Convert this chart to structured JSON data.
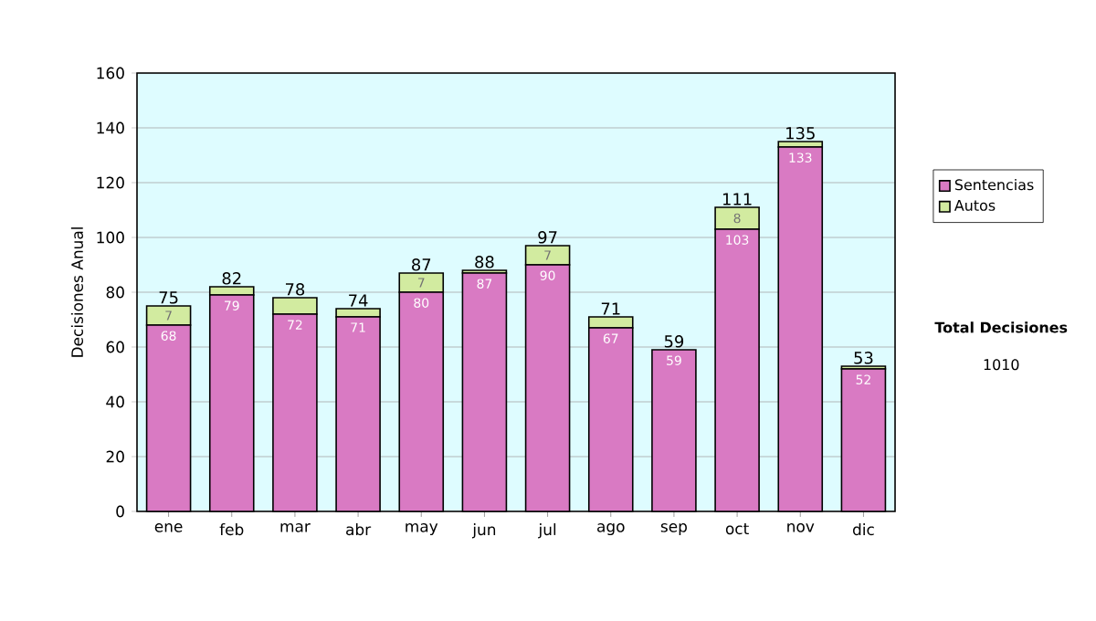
{
  "chart_data": {
    "type": "bar",
    "stacked": true,
    "ylabel": "Decisiones Anual",
    "categories": [
      "ene",
      "feb",
      "mar",
      "abr",
      "may",
      "jun",
      "jul",
      "ago",
      "sep",
      "oct",
      "nov",
      "dic"
    ],
    "series": [
      {
        "name": "Sentencias",
        "color": "#d97ac3",
        "values": [
          68,
          79,
          72,
          71,
          80,
          87,
          90,
          67,
          59,
          103,
          133,
          52
        ],
        "value_labels": [
          "68",
          "79",
          "72",
          "71",
          "80",
          "87",
          "90",
          "67",
          "59",
          "103",
          "133",
          "52"
        ]
      },
      {
        "name": "Autos",
        "color": "#d2eba0",
        "values": [
          7,
          3,
          6,
          3,
          7,
          1,
          7,
          4,
          0,
          8,
          2,
          1
        ],
        "value_labels": [
          "7",
          null,
          null,
          null,
          "7",
          null,
          "7",
          null,
          null,
          "8",
          null,
          null
        ]
      }
    ],
    "totals": [
      "75",
      "82",
      "78",
      "74",
      "87",
      "88",
      "97",
      "71",
      "59",
      "111",
      "135",
      "53"
    ],
    "ylim": [
      0,
      160
    ],
    "yticks": [
      0,
      20,
      40,
      60,
      80,
      100,
      120,
      140,
      160
    ],
    "grid": "y",
    "legend": "right",
    "annotations": [
      "Total Decisiones",
      "1010"
    ]
  }
}
